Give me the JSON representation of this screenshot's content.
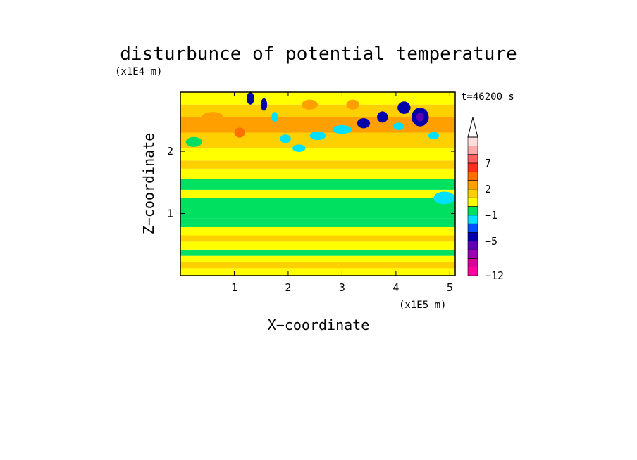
{
  "chart_data": {
    "type": "heatmap",
    "title": "disturbunce of potential temperature",
    "time_label": "t=46200 s",
    "xlabel": "X−coordinate",
    "ylabel": "Z−coordinate",
    "x_scale_label": "(x1E5 m)",
    "y_scale_label": "(x1E4 m)",
    "xlim": [
      0,
      5.1
    ],
    "ylim": [
      0,
      2.95
    ],
    "x_ticks": [
      "1",
      "2",
      "3",
      "4",
      "5"
    ],
    "y_ticks": [
      "1",
      "2"
    ],
    "colorbar": {
      "tick_labels": [
        "7",
        "2",
        "−1",
        "−5",
        "−12"
      ],
      "levels": [
        -12,
        -11,
        -9,
        -7,
        -5,
        -3,
        -2,
        -1,
        0,
        1,
        2,
        3,
        5,
        7,
        9,
        11
      ],
      "colors": [
        "#ff00a0",
        "#d800a0",
        "#9b00b0",
        "#6000b0",
        "#0000a8",
        "#0050ff",
        "#00e0ff",
        "#00e060",
        "#ffff00",
        "#ffd000",
        "#ffa000",
        "#ff7000",
        "#ff3020",
        "#ff6060",
        "#ffaaaa",
        "#ffdddd"
      ],
      "top_color": "#ffffff"
    },
    "bands": [
      {
        "z0": 0.0,
        "z1": 0.12,
        "value": 0.5
      },
      {
        "z0": 0.12,
        "z1": 0.22,
        "value": 1.5
      },
      {
        "z0": 0.22,
        "z1": 0.32,
        "value": 0.5
      },
      {
        "z0": 0.32,
        "z1": 0.42,
        "value": -0.5
      },
      {
        "z0": 0.42,
        "z1": 0.55,
        "value": 0.5
      },
      {
        "z0": 0.55,
        "z1": 0.65,
        "value": 1.5
      },
      {
        "z0": 0.65,
        "z1": 0.78,
        "value": 0.5
      },
      {
        "z0": 0.78,
        "z1": 0.92,
        "value": -0.5
      },
      {
        "z0": 0.92,
        "z1": 1.1,
        "value": -0.5
      },
      {
        "z0": 1.1,
        "z1": 1.25,
        "value": -0.5
      },
      {
        "z0": 1.25,
        "z1": 1.38,
        "value": 0.5
      },
      {
        "z0": 1.38,
        "z1": 1.55,
        "value": -0.5
      },
      {
        "z0": 1.55,
        "z1": 1.72,
        "value": 0.5
      },
      {
        "z0": 1.72,
        "z1": 1.85,
        "value": 1.5
      },
      {
        "z0": 1.85,
        "z1": 2.05,
        "value": 0.5
      },
      {
        "z0": 2.05,
        "z1": 2.3,
        "value": 1.5
      },
      {
        "z0": 2.3,
        "z1": 2.55,
        "value": 2.5
      },
      {
        "z0": 2.55,
        "z1": 2.75,
        "value": 1.5
      },
      {
        "z0": 2.75,
        "z1": 2.95,
        "value": 0.5
      }
    ],
    "blobs": [
      {
        "x": 1.3,
        "z": 2.85,
        "rx": 0.07,
        "rz": 0.1,
        "value": -3.5
      },
      {
        "x": 1.55,
        "z": 2.75,
        "rx": 0.06,
        "rz": 0.1,
        "value": -3.5
      },
      {
        "x": 1.75,
        "z": 2.55,
        "rx": 0.06,
        "rz": 0.08,
        "value": -1.5
      },
      {
        "x": 1.95,
        "z": 2.2,
        "rx": 0.1,
        "rz": 0.07,
        "value": -1.5
      },
      {
        "x": 2.2,
        "z": 2.05,
        "rx": 0.12,
        "rz": 0.06,
        "value": -1.5
      },
      {
        "x": 2.55,
        "z": 2.25,
        "rx": 0.15,
        "rz": 0.07,
        "value": -1.5
      },
      {
        "x": 3.0,
        "z": 2.35,
        "rx": 0.18,
        "rz": 0.07,
        "value": -1.5
      },
      {
        "x": 3.4,
        "z": 2.45,
        "rx": 0.12,
        "rz": 0.08,
        "value": -3.5
      },
      {
        "x": 3.75,
        "z": 2.55,
        "rx": 0.1,
        "rz": 0.09,
        "value": -3.5
      },
      {
        "x": 4.15,
        "z": 2.7,
        "rx": 0.12,
        "rz": 0.1,
        "value": -3.5
      },
      {
        "x": 4.45,
        "z": 2.55,
        "rx": 0.16,
        "rz": 0.15,
        "value": -3.5
      },
      {
        "x": 4.45,
        "z": 2.55,
        "rx": 0.07,
        "rz": 0.07,
        "value": -6.0
      },
      {
        "x": 4.05,
        "z": 2.4,
        "rx": 0.1,
        "rz": 0.06,
        "value": -1.5
      },
      {
        "x": 4.7,
        "z": 2.25,
        "rx": 0.1,
        "rz": 0.06,
        "value": -1.5
      },
      {
        "x": 0.25,
        "z": 2.15,
        "rx": 0.15,
        "rz": 0.08,
        "value": -0.5
      },
      {
        "x": 4.9,
        "z": 1.25,
        "rx": 0.2,
        "rz": 0.1,
        "value": -1.5
      },
      {
        "x": 0.6,
        "z": 2.55,
        "rx": 0.2,
        "rz": 0.08,
        "value": 2.5
      },
      {
        "x": 1.1,
        "z": 2.3,
        "rx": 0.1,
        "rz": 0.08,
        "value": 3.5
      },
      {
        "x": 2.4,
        "z": 2.75,
        "rx": 0.15,
        "rz": 0.08,
        "value": 2.5
      },
      {
        "x": 3.2,
        "z": 2.75,
        "rx": 0.12,
        "rz": 0.08,
        "value": 2.5
      }
    ]
  }
}
